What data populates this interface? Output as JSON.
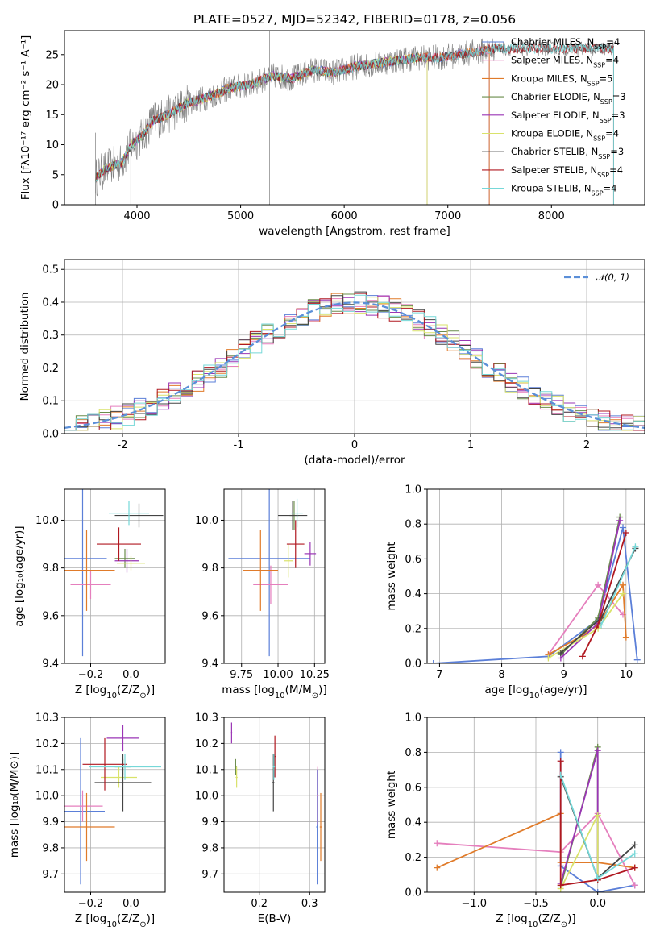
{
  "figure_title": "PLATE=0527, MJD=52342, FIBERID=0178, z=0.056",
  "colors": {
    "Chabrier MILES": "#5b7fd8",
    "Salpeter MILES": "#e57fbd",
    "Kroupa MILES": "#e07b2a",
    "Chabrier ELODIE": "#6a8c4b",
    "Salpeter ELODIE": "#9a35b5",
    "Kroupa ELODIE": "#d9e26a",
    "Chabrier STELIB": "#444444",
    "Salpeter STELIB": "#b01820",
    "Kroupa STELIB": "#76d8d8",
    "data": "#808080",
    "normal": "#5b8fd8"
  },
  "chart_data": [
    {
      "id": "spectrum",
      "type": "line",
      "title": "PLATE=0527, MJD=52342, FIBERID=0178, z=0.056",
      "xlabel": "wavelength [Angstrom, rest frame]",
      "ylabel": "Flux [fλ10⁻¹⁷ erg cm⁻² s⁻¹ A⁻¹]",
      "xlim": [
        3300,
        8900
      ],
      "ylim": [
        0,
        29
      ],
      "xticks": [
        4000,
        5000,
        6000,
        7000,
        8000
      ],
      "yticks": [
        0,
        5,
        10,
        15,
        20,
        25
      ],
      "grid": false,
      "legend_position": "top-right",
      "legend": [
        {
          "model": "Chabrier MILES",
          "label": "Chabrier MILES, N",
          "sub": "SSP",
          "tail": "=4"
        },
        {
          "model": "Salpeter MILES",
          "label": "Salpeter MILES, N",
          "sub": "SSP",
          "tail": "=4"
        },
        {
          "model": "Kroupa MILES",
          "label": "Kroupa MILES, N",
          "sub": "SSP",
          "tail": "=5"
        },
        {
          "model": "Chabrier ELODIE",
          "label": "Chabrier ELODIE, N",
          "sub": "SSP",
          "tail": "=3"
        },
        {
          "model": "Salpeter ELODIE",
          "label": "Salpeter ELODIE, N",
          "sub": "SSP",
          "tail": "=3"
        },
        {
          "model": "Kroupa ELODIE",
          "label": "Kroupa ELODIE, N",
          "sub": "SSP",
          "tail": "=4"
        },
        {
          "model": "Chabrier STELIB",
          "label": "Chabrier STELIB, N",
          "sub": "SSP",
          "tail": "=3"
        },
        {
          "model": "Salpeter STELIB",
          "label": "Salpeter STELIB, N",
          "sub": "SSP",
          "tail": "=4"
        },
        {
          "model": "Kroupa STELIB",
          "label": "Kroupa STELIB, N",
          "sub": "SSP",
          "tail": "=4"
        }
      ],
      "continuum": {
        "x": [
          3600,
          3700,
          3850,
          3950,
          4050,
          4150,
          4300,
          4500,
          4700,
          4900,
          5100,
          5300,
          5500,
          5700,
          5900,
          6100,
          6300,
          6500,
          6700,
          6900,
          7100,
          7300,
          7450
        ],
        "y": [
          4.5,
          6,
          7,
          10,
          11.5,
          14,
          15,
          17,
          18,
          19.5,
          20,
          21.5,
          21,
          22.5,
          22,
          23,
          23.5,
          24,
          24.5,
          24.5,
          25,
          25.5,
          26
        ]
      },
      "model_end_x": {
        "MILES": 7400,
        "ELODIE": 6800,
        "STELIB": 8600
      },
      "spikes": [
        {
          "x": 3600,
          "y_low": -1,
          "y_high": 12
        },
        {
          "x": 5280,
          "y_low": 0,
          "y_high": 29
        },
        {
          "x": 3940,
          "y_low": 0,
          "y_high": 10
        }
      ]
    },
    {
      "id": "residuals",
      "type": "histogram",
      "xlabel": "(data-model)/error",
      "ylabel": "Normed distribution",
      "xlim": [
        -2.5,
        2.5
      ],
      "ylim": [
        0,
        0.53
      ],
      "xticks": [
        -2,
        -1,
        0,
        1,
        2
      ],
      "yticks": [
        0.0,
        0.1,
        0.2,
        0.3,
        0.4,
        0.5
      ],
      "grid": true,
      "legend_position": "top-right",
      "legend": [
        {
          "label": "𝒩(0, 1)",
          "style": "dashed"
        }
      ],
      "bin_width": 0.1
    },
    {
      "id": "age-vs-Z",
      "type": "errorbar",
      "xlabel_main": "Z [log",
      "xlabel_sub": "10",
      "xlabel_tail": "(Z/Z",
      "xlabel_sun": "⊙",
      "xlabel_end": ")]",
      "ylabel": "age  [log₁₀(age/yr)]",
      "xlim": [
        -0.33,
        0.17
      ],
      "ylim": [
        9.4,
        10.13
      ],
      "xticks": [
        -0.2,
        0.0
      ],
      "xticklabels": [
        "−0.2",
        "0.0"
      ],
      "yticks": [
        9.4,
        9.6,
        9.8,
        10.0
      ],
      "grid": true,
      "points": [
        {
          "model": "Chabrier MILES",
          "x": -0.24,
          "xerr": 0.12,
          "y": 9.84,
          "yerr": 0.41
        },
        {
          "model": "Salpeter MILES",
          "x": -0.2,
          "xerr": 0.1,
          "y": 9.73,
          "yerr": 0.06
        },
        {
          "model": "Kroupa MILES",
          "x": -0.22,
          "xerr": 0.14,
          "y": 9.79,
          "yerr": 0.17
        },
        {
          "model": "Chabrier ELODIE",
          "x": -0.03,
          "xerr": 0.05,
          "y": 9.84,
          "yerr": 0.04
        },
        {
          "model": "Salpeter ELODIE",
          "x": -0.02,
          "xerr": 0.06,
          "y": 9.83,
          "yerr": 0.05
        },
        {
          "model": "Kroupa ELODIE",
          "x": 0.0,
          "xerr": 0.07,
          "y": 9.82,
          "yerr": 0.03
        },
        {
          "model": "Chabrier STELIB",
          "x": 0.04,
          "xerr": 0.12,
          "y": 10.02,
          "yerr": 0.05
        },
        {
          "model": "Salpeter STELIB",
          "x": -0.06,
          "xerr": 0.11,
          "y": 9.9,
          "yerr": 0.07
        },
        {
          "model": "Kroupa STELIB",
          "x": -0.01,
          "xerr": 0.1,
          "y": 10.03,
          "yerr": 0.05
        }
      ]
    },
    {
      "id": "age-vs-mass",
      "type": "errorbar",
      "xlabel_main": "mass [log",
      "xlabel_sub": "10",
      "xlabel_tail": "(M/M",
      "xlabel_sun": "⊙",
      "xlabel_end": ")]",
      "ylabel": "",
      "xlim": [
        9.63,
        10.32
      ],
      "ylim": [
        9.4,
        10.13
      ],
      "xticks": [
        9.75,
        10.0,
        10.25
      ],
      "xticklabels": [
        "9.75",
        "10.00",
        "10.25"
      ],
      "yticks": [
        9.4,
        9.6,
        9.8,
        10.0
      ],
      "grid": true,
      "points": [
        {
          "model": "Chabrier MILES",
          "x": 9.94,
          "xerr": 0.28,
          "y": 9.84,
          "yerr": 0.41
        },
        {
          "model": "Salpeter MILES",
          "x": 9.95,
          "xerr": 0.12,
          "y": 9.73,
          "yerr": 0.08
        },
        {
          "model": "Kroupa MILES",
          "x": 9.88,
          "xerr": 0.12,
          "y": 9.79,
          "yerr": 0.17
        },
        {
          "model": "Chabrier ELODIE",
          "x": 10.11,
          "xerr": 0.03,
          "y": 10.02,
          "yerr": 0.06
        },
        {
          "model": "Salpeter ELODIE",
          "x": 10.22,
          "xerr": 0.04,
          "y": 9.86,
          "yerr": 0.05
        },
        {
          "model": "Kroupa ELODIE",
          "x": 10.07,
          "xerr": 0.03,
          "y": 9.83,
          "yerr": 0.07
        },
        {
          "model": "Chabrier STELIB",
          "x": 10.1,
          "xerr": 0.1,
          "y": 10.02,
          "yerr": 0.06
        },
        {
          "model": "Salpeter STELIB",
          "x": 10.12,
          "xerr": 0.06,
          "y": 9.9,
          "yerr": 0.1
        },
        {
          "model": "Kroupa STELIB",
          "x": 10.13,
          "xerr": 0.04,
          "y": 10.03,
          "yerr": 0.06
        }
      ]
    },
    {
      "id": "massweight-vs-age",
      "type": "line",
      "xlabel_main": "age  [log",
      "xlabel_sub": "10",
      "xlabel_tail": "(age/yr)]",
      "ylabel": "mass weight",
      "xlim": [
        6.8,
        10.3
      ],
      "ylim": [
        0,
        1.0
      ],
      "xticks": [
        7,
        8,
        9,
        10
      ],
      "yticks": [
        0.0,
        0.2,
        0.4,
        0.6,
        0.8,
        1.0
      ],
      "grid": true,
      "series": [
        {
          "model": "Chabrier MILES",
          "x": [
            6.9,
            8.75,
            9.55,
            9.95,
            10.18
          ],
          "y": [
            0.0,
            0.04,
            0.25,
            0.78,
            0.02
          ]
        },
        {
          "model": "Salpeter MILES",
          "x": [
            8.75,
            9.55,
            9.95
          ],
          "y": [
            0.05,
            0.45,
            0.28
          ]
        },
        {
          "model": "Kroupa MILES",
          "x": [
            8.75,
            9.3,
            9.55,
            9.95,
            10.0
          ],
          "y": [
            0.05,
            0.16,
            0.22,
            0.45,
            0.15
          ]
        },
        {
          "model": "Chabrier ELODIE",
          "x": [
            8.95,
            9.55,
            9.9
          ],
          "y": [
            0.05,
            0.26,
            0.84
          ]
        },
        {
          "model": "Salpeter ELODIE",
          "x": [
            8.95,
            9.55,
            9.9
          ],
          "y": [
            0.03,
            0.23,
            0.82
          ]
        },
        {
          "model": "Kroupa ELODIE",
          "x": [
            8.75,
            9.55,
            9.95
          ],
          "y": [
            0.03,
            0.2,
            0.4
          ]
        },
        {
          "model": "Chabrier STELIB",
          "x": [
            8.95,
            9.6,
            10.15
          ],
          "y": [
            0.06,
            0.26,
            0.66
          ]
        },
        {
          "model": "Salpeter STELIB",
          "x": [
            9.3,
            9.55,
            10.0
          ],
          "y": [
            0.04,
            0.22,
            0.75
          ]
        },
        {
          "model": "Kroupa STELIB",
          "x": [
            9.6,
            10.15
          ],
          "y": [
            0.22,
            0.67
          ]
        }
      ]
    },
    {
      "id": "mass-vs-Z",
      "type": "errorbar",
      "xlabel_main": "Z [log",
      "xlabel_sub": "10",
      "xlabel_tail": "(Z/Z",
      "xlabel_sun": "⊙",
      "xlabel_end": ")]",
      "ylabel": "mass [log₁₀(M/M⊙)]",
      "xlim": [
        -0.33,
        0.17
      ],
      "ylim": [
        9.63,
        10.3
      ],
      "xticks": [
        -0.2,
        0.0
      ],
      "xticklabels": [
        "−0.2",
        "0.0"
      ],
      "yticks": [
        9.7,
        9.8,
        9.9,
        10.0,
        10.1,
        10.2,
        10.3
      ],
      "grid": true,
      "points": [
        {
          "model": "Chabrier MILES",
          "x": -0.25,
          "xerr": 0.12,
          "y": 9.94,
          "yerr": 0.28
        },
        {
          "model": "Salpeter MILES",
          "x": -0.24,
          "xerr": 0.1,
          "y": 9.96,
          "yerr": 0.06
        },
        {
          "model": "Kroupa MILES",
          "x": -0.22,
          "xerr": 0.14,
          "y": 9.88,
          "yerr": 0.13
        },
        {
          "model": "Chabrier ELODIE",
          "x": -0.04,
          "xerr": 0.04,
          "y": 10.11,
          "yerr": 0.03
        },
        {
          "model": "Salpeter ELODIE",
          "x": -0.04,
          "xerr": 0.08,
          "y": 10.22,
          "yerr": 0.05
        },
        {
          "model": "Kroupa ELODIE",
          "x": -0.06,
          "xerr": 0.09,
          "y": 10.07,
          "yerr": 0.04
        },
        {
          "model": "Chabrier STELIB",
          "x": -0.04,
          "xerr": 0.14,
          "y": 10.05,
          "yerr": 0.11
        },
        {
          "model": "Salpeter STELIB",
          "x": -0.13,
          "xerr": 0.11,
          "y": 10.12,
          "yerr": 0.1
        },
        {
          "model": "Kroupa STELIB",
          "x": -0.03,
          "xerr": 0.18,
          "y": 10.11,
          "yerr": 0.05
        }
      ]
    },
    {
      "id": "mass-vs-EBV",
      "type": "errorbar",
      "xlabel": "E(B-V)",
      "ylabel": "",
      "xlim": [
        0.13,
        0.33
      ],
      "ylim": [
        9.63,
        10.3
      ],
      "xticks": [
        0.2,
        0.3
      ],
      "xticklabels": [
        "0.2",
        "0.3"
      ],
      "yticks": [
        9.7,
        9.8,
        9.9,
        10.0,
        10.1,
        10.2,
        10.3
      ],
      "grid": true,
      "points": [
        {
          "model": "Chabrier MILES",
          "x": 0.315,
          "xerr": 0.002,
          "y": 9.88,
          "yerr": 0.22
        },
        {
          "model": "Salpeter MILES",
          "x": 0.316,
          "xerr": 0.002,
          "y": 10.0,
          "yerr": 0.11
        },
        {
          "model": "Kroupa MILES",
          "x": 0.322,
          "xerr": 0.002,
          "y": 9.88,
          "yerr": 0.13
        },
        {
          "model": "Chabrier ELODIE",
          "x": 0.153,
          "xerr": 0.002,
          "y": 10.11,
          "yerr": 0.03
        },
        {
          "model": "Salpeter ELODIE",
          "x": 0.145,
          "xerr": 0.002,
          "y": 10.24,
          "yerr": 0.04
        },
        {
          "model": "Kroupa ELODIE",
          "x": 0.155,
          "xerr": 0.002,
          "y": 10.07,
          "yerr": 0.04
        },
        {
          "model": "Chabrier STELIB",
          "x": 0.228,
          "xerr": 0.002,
          "y": 10.05,
          "yerr": 0.11
        },
        {
          "model": "Salpeter STELIB",
          "x": 0.231,
          "xerr": 0.002,
          "y": 10.15,
          "yerr": 0.08
        },
        {
          "model": "Kroupa STELIB",
          "x": 0.229,
          "xerr": 0.002,
          "y": 10.11,
          "yerr": 0.05
        }
      ]
    },
    {
      "id": "massweight-vs-Z",
      "type": "line",
      "xlabel_main": "Z [log",
      "xlabel_sub": "10",
      "xlabel_tail": "(Z/Z",
      "xlabel_sun": "⊙",
      "xlabel_end": ")]",
      "ylabel": "mass weight",
      "xlim": [
        -1.38,
        0.38
      ],
      "ylim": [
        0,
        1.0
      ],
      "xticks": [
        -1.0,
        -0.5,
        0.0
      ],
      "xticklabels": [
        "−1.0",
        "−0.5",
        "0.0"
      ],
      "yticks": [
        0.0,
        0.2,
        0.4,
        0.6,
        0.8,
        1.0
      ],
      "grid": true,
      "series": [
        {
          "model": "Chabrier MILES",
          "x": [
            -0.3,
            -0.3,
            0.0,
            0.3
          ],
          "y": [
            0.8,
            0.15,
            0.0,
            0.04
          ]
        },
        {
          "model": "Salpeter MILES",
          "x": [
            -1.3,
            -0.3,
            0.0,
            0.3
          ],
          "y": [
            0.28,
            0.23,
            0.45,
            0.04
          ]
        },
        {
          "model": "Kroupa MILES",
          "x": [
            -1.3,
            -0.3,
            -0.3,
            0.0,
            0.3
          ],
          "y": [
            0.14,
            0.45,
            0.17,
            0.17,
            0.14
          ]
        },
        {
          "model": "Chabrier ELODIE",
          "x": [
            -0.3,
            0.0,
            0.0
          ],
          "y": [
            0.03,
            0.83,
            0.07
          ]
        },
        {
          "model": "Salpeter ELODIE",
          "x": [
            -0.3,
            0.0,
            0.0
          ],
          "y": [
            0.05,
            0.81,
            0.07
          ]
        },
        {
          "model": "Kroupa ELODIE",
          "x": [
            -0.3,
            0.0,
            0.0
          ],
          "y": [
            0.02,
            0.44,
            0.07
          ]
        },
        {
          "model": "Chabrier STELIB",
          "x": [
            -0.3,
            0.0,
            0.3
          ],
          "y": [
            0.66,
            0.08,
            0.27
          ]
        },
        {
          "model": "Salpeter STELIB",
          "x": [
            -0.3,
            -0.3,
            0.0,
            0.3
          ],
          "y": [
            0.75,
            0.04,
            0.07,
            0.14
          ]
        },
        {
          "model": "Kroupa STELIB",
          "x": [
            -0.3,
            0.0,
            0.3
          ],
          "y": [
            0.67,
            0.08,
            0.22
          ]
        }
      ]
    }
  ]
}
